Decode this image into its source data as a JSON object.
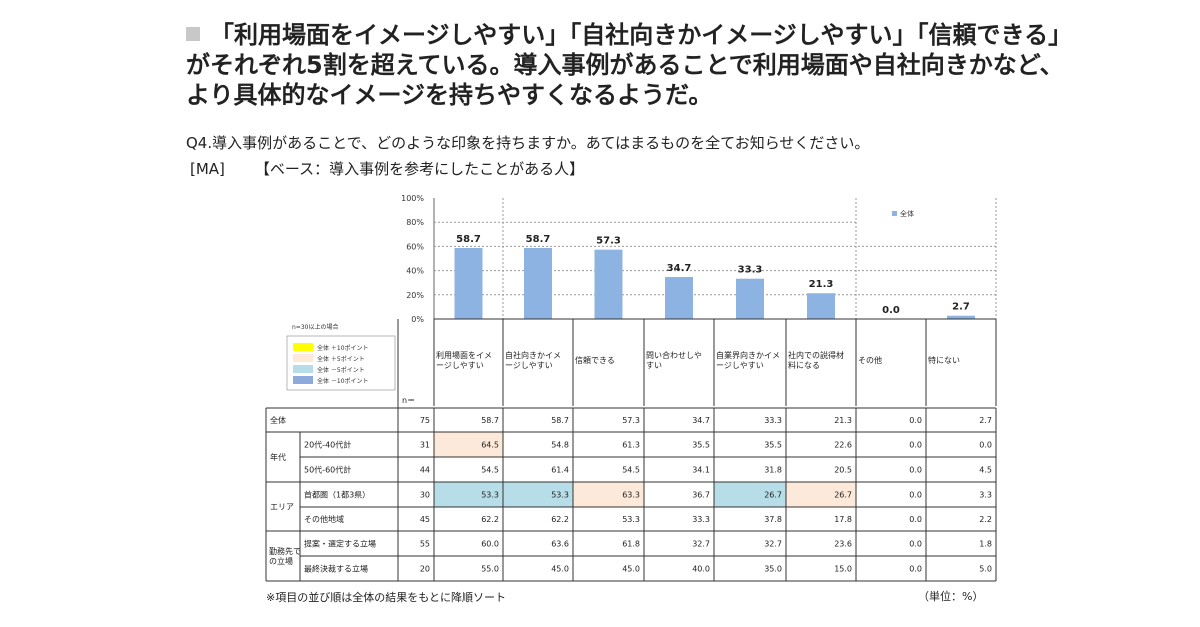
{
  "headline": "「利用場面をイメージしやすい」「自社向きかイメージしやすい」「信頼できる」がそれぞれ5割を超えている。導入事例があることで利用場面や自社向きかなど、より具体的なイメージを持ちやすくなるようだ。",
  "question": "Q4.導入事例があることで、どのような印象を持ちますか。あてはまるものを全てお知らせください。",
  "base_ma": "[MA]",
  "base_label": "【ベース：導入事例を参考にしたことがある人】",
  "footnote": "※項目の並び順は全体の結果をもとに降順ソート",
  "unit_note": "（単位：%）",
  "colors": {
    "bar": "#8db3e2",
    "grid": "#999999",
    "plus10": "#ffff00",
    "plus5": "#fde9d9",
    "minus5": "#b7dde8",
    "minus10": "#8ea9db"
  },
  "chart_data": {
    "type": "bar",
    "categories": [
      "利用場面をイメージしやすい",
      "自社向きかイメージしやすい",
      "信頼できる",
      "問い合わせしやすい",
      "自業界向きかイメージしやすい",
      "社内での説得材料になる",
      "その他",
      "特にない"
    ],
    "series": [
      {
        "name": "全体",
        "values": [
          58.7,
          58.7,
          57.3,
          34.7,
          33.3,
          21.3,
          0.0,
          2.7
        ]
      }
    ],
    "value_labels": [
      "58.7",
      "58.7",
      "57.3",
      "34.7",
      "33.3",
      "21.3",
      "0.0",
      "2.7"
    ],
    "yticks": [
      "0%",
      "20%",
      "40%",
      "60%",
      "80%",
      "100%"
    ],
    "ylim": [
      0,
      100
    ],
    "legend": "全体",
    "legend_position": "top-right"
  },
  "legend_note": {
    "title": "n=30以上の場合",
    "items": [
      {
        "swatch": "plus10",
        "label": "全体 ＋10ポイント"
      },
      {
        "swatch": "plus5",
        "label": "全体 ＋5ポイント"
      },
      {
        "swatch": "minus5",
        "label": "全体 －5ポイント"
      },
      {
        "swatch": "minus10",
        "label": "全体 －10ポイント"
      }
    ]
  },
  "table": {
    "n_header": "n＝",
    "rows": [
      {
        "group": "全体",
        "sub": "",
        "n": "75",
        "values": [
          "58.7",
          "58.7",
          "57.3",
          "34.7",
          "33.3",
          "21.3",
          "0.0",
          "2.7"
        ],
        "hl": [
          "",
          "",
          "",
          "",
          "",
          "",
          "",
          ""
        ]
      },
      {
        "group": "年代",
        "sub": "20代-40代計",
        "n": "31",
        "values": [
          "64.5",
          "54.8",
          "61.3",
          "35.5",
          "35.5",
          "22.6",
          "0.0",
          "0.0"
        ],
        "hl": [
          "plus5",
          "",
          "",
          "",
          "",
          "",
          "",
          ""
        ]
      },
      {
        "group": "",
        "sub": "50代-60代計",
        "n": "44",
        "values": [
          "54.5",
          "61.4",
          "54.5",
          "34.1",
          "31.8",
          "20.5",
          "0.0",
          "4.5"
        ],
        "hl": [
          "",
          "",
          "",
          "",
          "",
          "",
          "",
          ""
        ]
      },
      {
        "group": "エリア",
        "sub": "首都圏（1都3県）",
        "n": "30",
        "values": [
          "53.3",
          "53.3",
          "63.3",
          "36.7",
          "26.7",
          "26.7",
          "0.0",
          "3.3"
        ],
        "hl": [
          "minus5",
          "minus5",
          "plus5",
          "",
          "minus5",
          "plus5",
          "",
          ""
        ]
      },
      {
        "group": "",
        "sub": "その他地域",
        "n": "45",
        "values": [
          "62.2",
          "62.2",
          "53.3",
          "33.3",
          "37.8",
          "17.8",
          "0.0",
          "2.2"
        ],
        "hl": [
          "",
          "",
          "",
          "",
          "",
          "",
          "",
          ""
        ]
      },
      {
        "group": "勤務先での立場",
        "sub": "提案・選定する立場",
        "n": "55",
        "values": [
          "60.0",
          "63.6",
          "61.8",
          "32.7",
          "32.7",
          "23.6",
          "0.0",
          "1.8"
        ],
        "hl": [
          "",
          "",
          "",
          "",
          "",
          "",
          "",
          ""
        ]
      },
      {
        "group": "",
        "sub": "最終決裁する立場",
        "n": "20",
        "values": [
          "55.0",
          "45.0",
          "45.0",
          "40.0",
          "35.0",
          "15.0",
          "0.0",
          "5.0"
        ],
        "hl": [
          "",
          "",
          "",
          "",
          "",
          "",
          "",
          ""
        ]
      }
    ]
  }
}
